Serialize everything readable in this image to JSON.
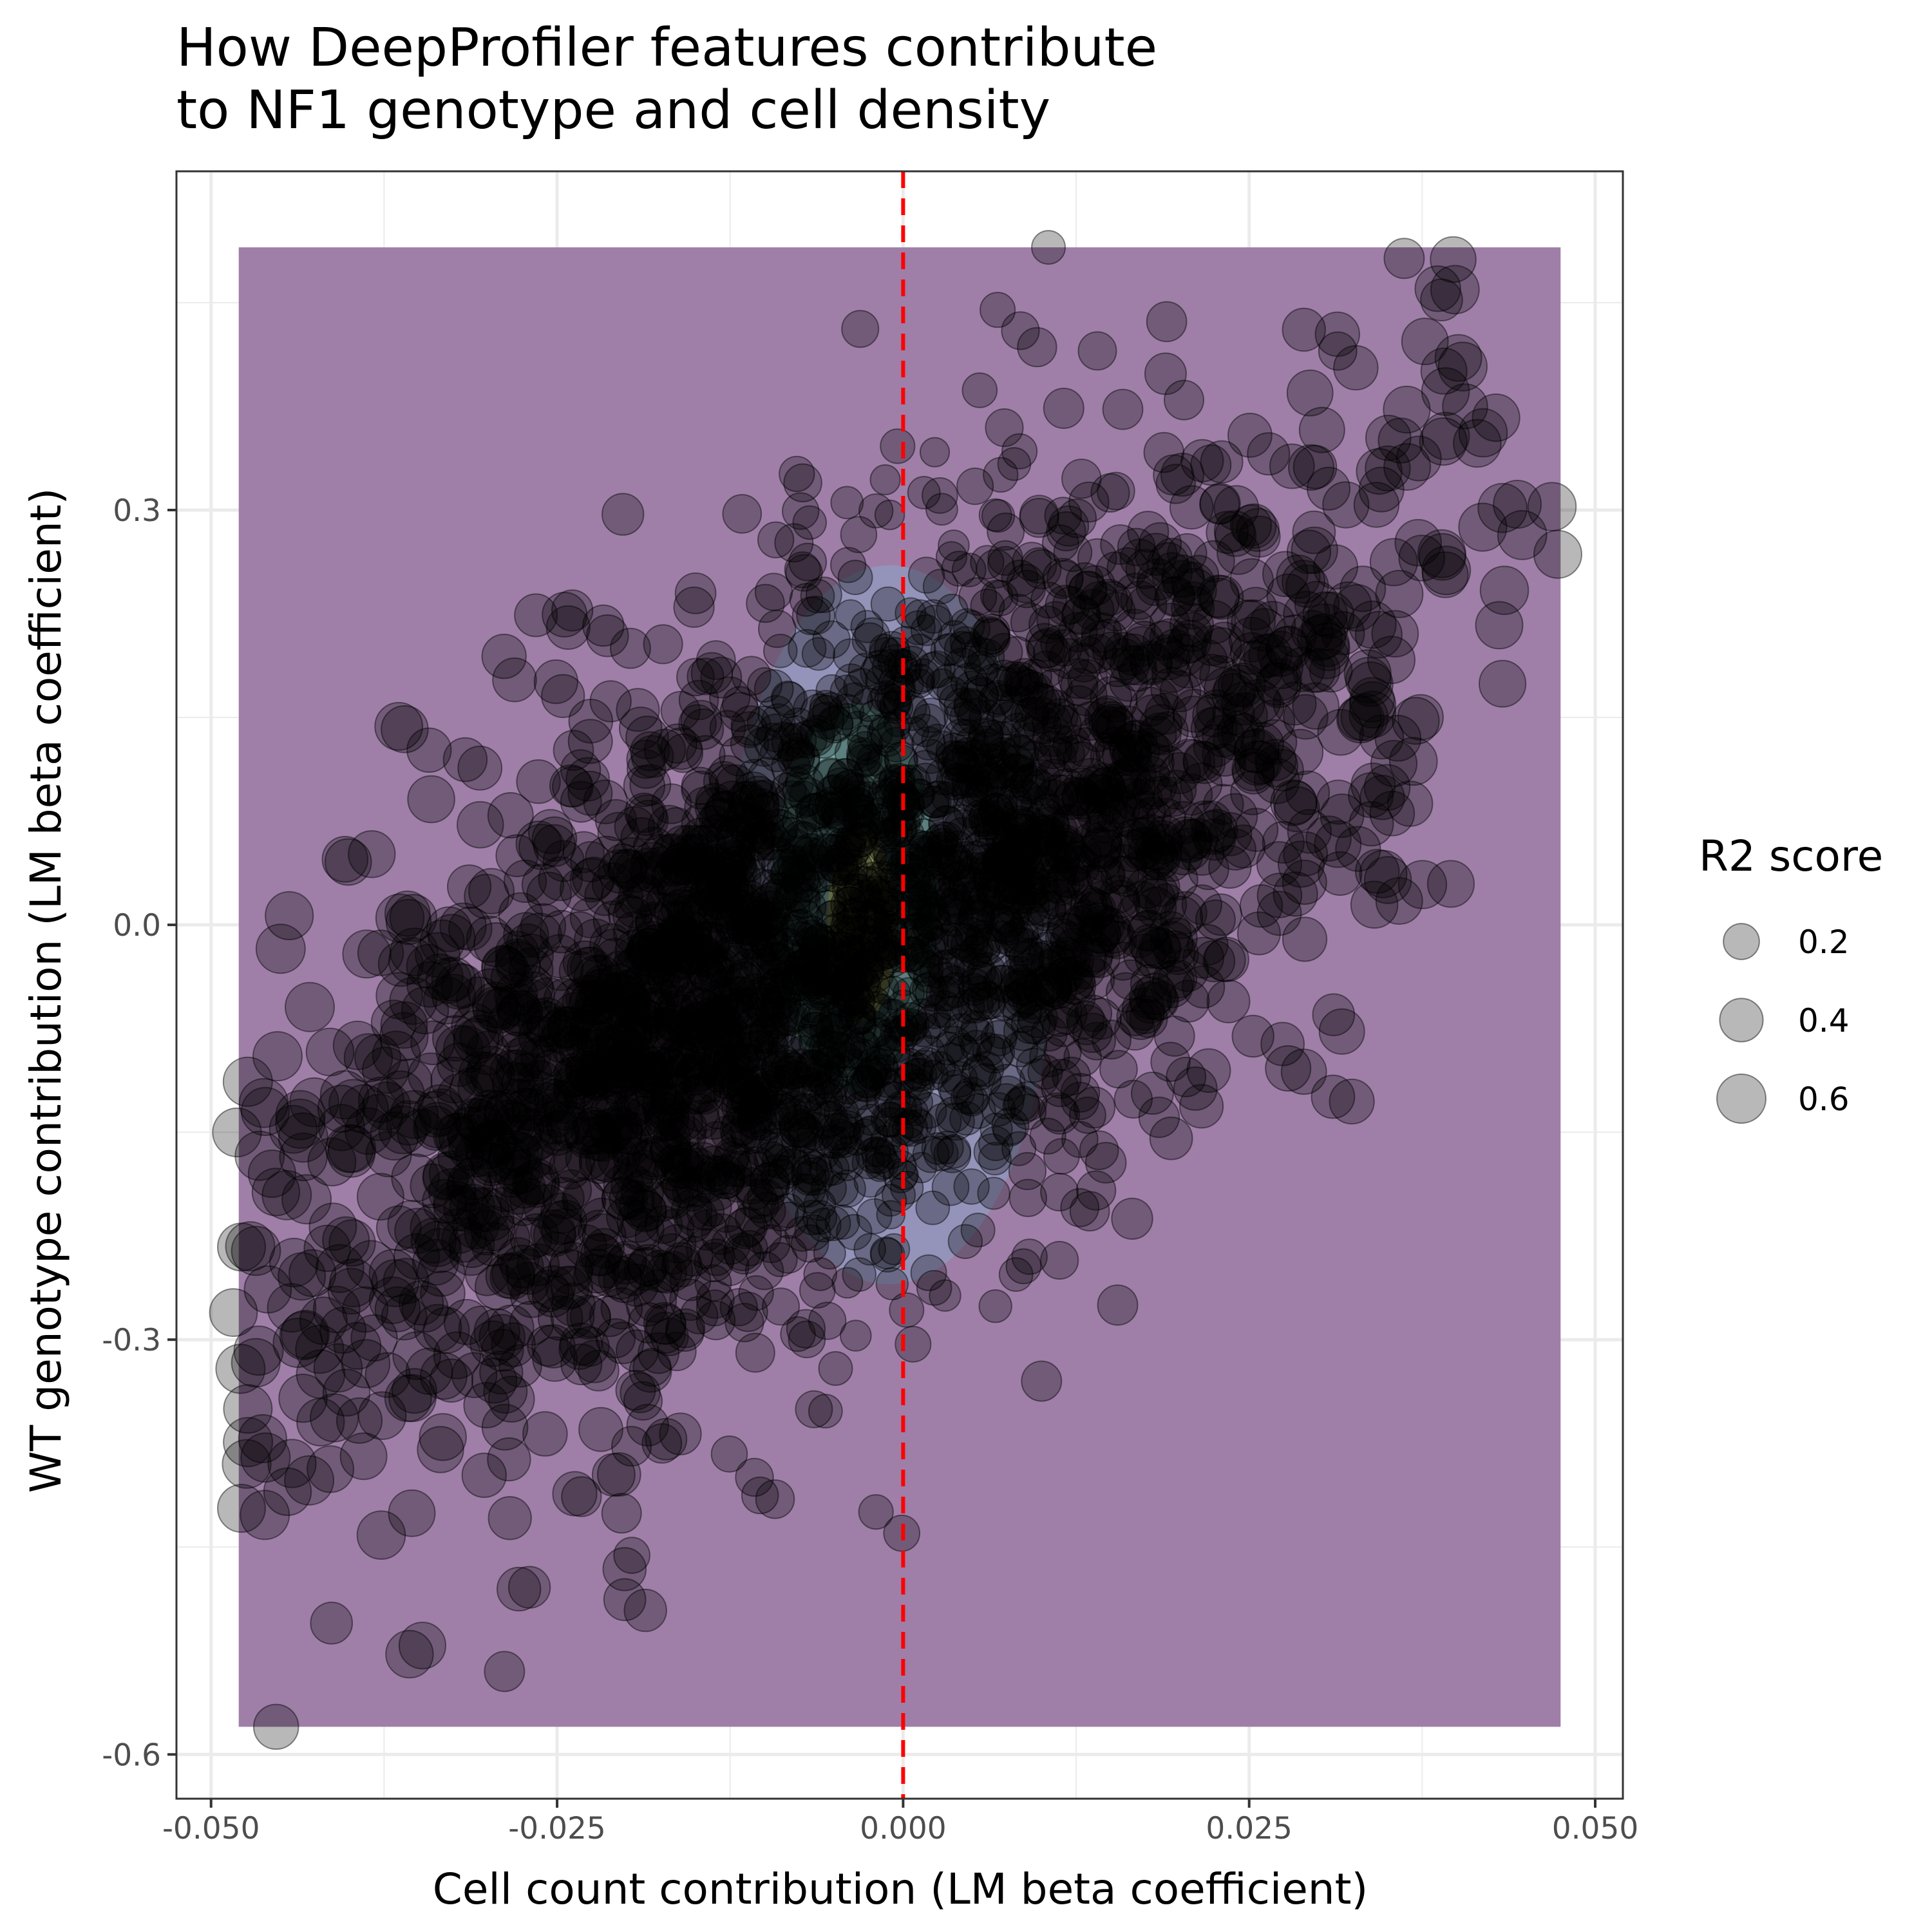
{
  "chart_data": {
    "type": "scatter",
    "title": "How DeepProfiler features contribute to NF1 genotype and cell density",
    "title_lines": [
      "How DeepProfiler features contribute",
      "to NF1 genotype and cell density"
    ],
    "xlabel": "Cell count contribution (LM beta coefficient)",
    "ylabel": "WT genotype contribution (LM beta coefficient)",
    "xlim": [
      -0.0525,
      0.052
    ],
    "ylim": [
      -0.632,
      0.545
    ],
    "x_ticks": [
      -0.05,
      -0.025,
      0.0,
      0.025,
      0.05
    ],
    "x_tick_labels": [
      "-0.050",
      "-0.025",
      "0.000",
      "0.025",
      "0.050"
    ],
    "y_ticks": [
      -0.6,
      -0.3,
      0.0,
      0.3
    ],
    "y_tick_labels": [
      "-0.6",
      "-0.3",
      "0.0",
      "0.3"
    ],
    "grid": true,
    "reference_line": {
      "x": 0.0,
      "color": "#ff0000",
      "style": "dashed"
    },
    "density_background": {
      "fill": "#9f7fa8",
      "x_range": [
        -0.048,
        0.0475
      ],
      "y_range": [
        -0.58,
        0.49
      ]
    },
    "point_color": "#000000",
    "point_alpha": 0.28,
    "size_legend": {
      "title": "R2 score",
      "values": [
        0.2,
        0.4,
        0.6
      ],
      "labels": [
        "0.2",
        "0.4",
        "0.6"
      ],
      "position": "right"
    },
    "notable_points": [
      {
        "x": 0.0105,
        "y": 0.49,
        "r2": 0.15
      },
      {
        "x": 0.0362,
        "y": 0.482,
        "r2": 0.3
      },
      {
        "x": 0.0389,
        "y": 0.452,
        "r2": 0.35
      },
      {
        "x": -0.0031,
        "y": 0.431,
        "r2": 0.22
      },
      {
        "x": 0.0314,
        "y": 0.415,
        "r2": 0.25
      },
      {
        "x": 0.0406,
        "y": 0.375,
        "r2": 0.45
      },
      {
        "x": 0.0473,
        "y": 0.268,
        "r2": 0.55
      },
      {
        "x": -0.0242,
        "y": 0.215,
        "r2": 0.4
      },
      {
        "x": -0.0197,
        "y": 0.2,
        "r2": 0.3
      },
      {
        "x": -0.0279,
        "y": 0.05,
        "r2": 0.35
      },
      {
        "x": -0.0343,
        "y": -0.03,
        "r2": 0.4
      },
      {
        "x": 0.0311,
        "y": -0.065,
        "r2": 0.35
      },
      {
        "x": -0.0478,
        "y": -0.233,
        "r2": 0.55
      },
      {
        "x": 0.0155,
        "y": -0.275,
        "r2": 0.3
      },
      {
        "x": 0.01,
        "y": -0.33,
        "r2": 0.3
      },
      {
        "x": -0.0478,
        "y": -0.422,
        "r2": 0.55
      },
      {
        "x": -0.0001,
        "y": -0.44,
        "r2": 0.2
      },
      {
        "x": -0.0196,
        "y": -0.456,
        "r2": 0.2
      },
      {
        "x": -0.0413,
        "y": -0.505,
        "r2": 0.35
      },
      {
        "x": -0.0288,
        "y": -0.54,
        "r2": 0.3
      },
      {
        "x": -0.0453,
        "y": -0.58,
        "r2": 0.45
      }
    ],
    "cloud": {
      "n_points": 3200,
      "center": [
        -0.004,
        -0.005
      ],
      "sd_x": 0.0185,
      "sd_y": 0.155,
      "correlation": 0.63,
      "r2_range": [
        0.05,
        0.6
      ]
    }
  }
}
